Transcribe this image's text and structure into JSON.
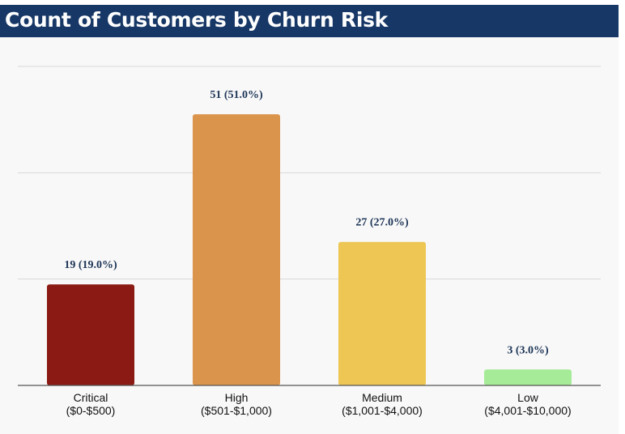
{
  "header": {
    "title": "Count of Customers by Churn Risk"
  },
  "chart_data": {
    "type": "bar",
    "title": "Count of Customers by Churn Risk",
    "categories": [
      [
        "Critical",
        "($0-$500)"
      ],
      [
        "High",
        "($501-$1,000)"
      ],
      [
        "Medium",
        "($1,001-$4,000)"
      ],
      [
        "Low",
        "($4,001-$10,000)"
      ]
    ],
    "values": [
      19,
      51,
      27,
      3
    ],
    "data_labels": [
      "19 (19.0%)",
      "51 (51.0%)",
      "27 (27.0%)",
      "3 (3.0%)"
    ],
    "colors": [
      "#8b1a14",
      "#db944c",
      "#edc654",
      "#a6ec98"
    ],
    "ylim": [
      0,
      60
    ],
    "gridlines": [
      20,
      40,
      60
    ],
    "grid": true,
    "legend": "none",
    "xlabel": "",
    "ylabel": ""
  }
}
